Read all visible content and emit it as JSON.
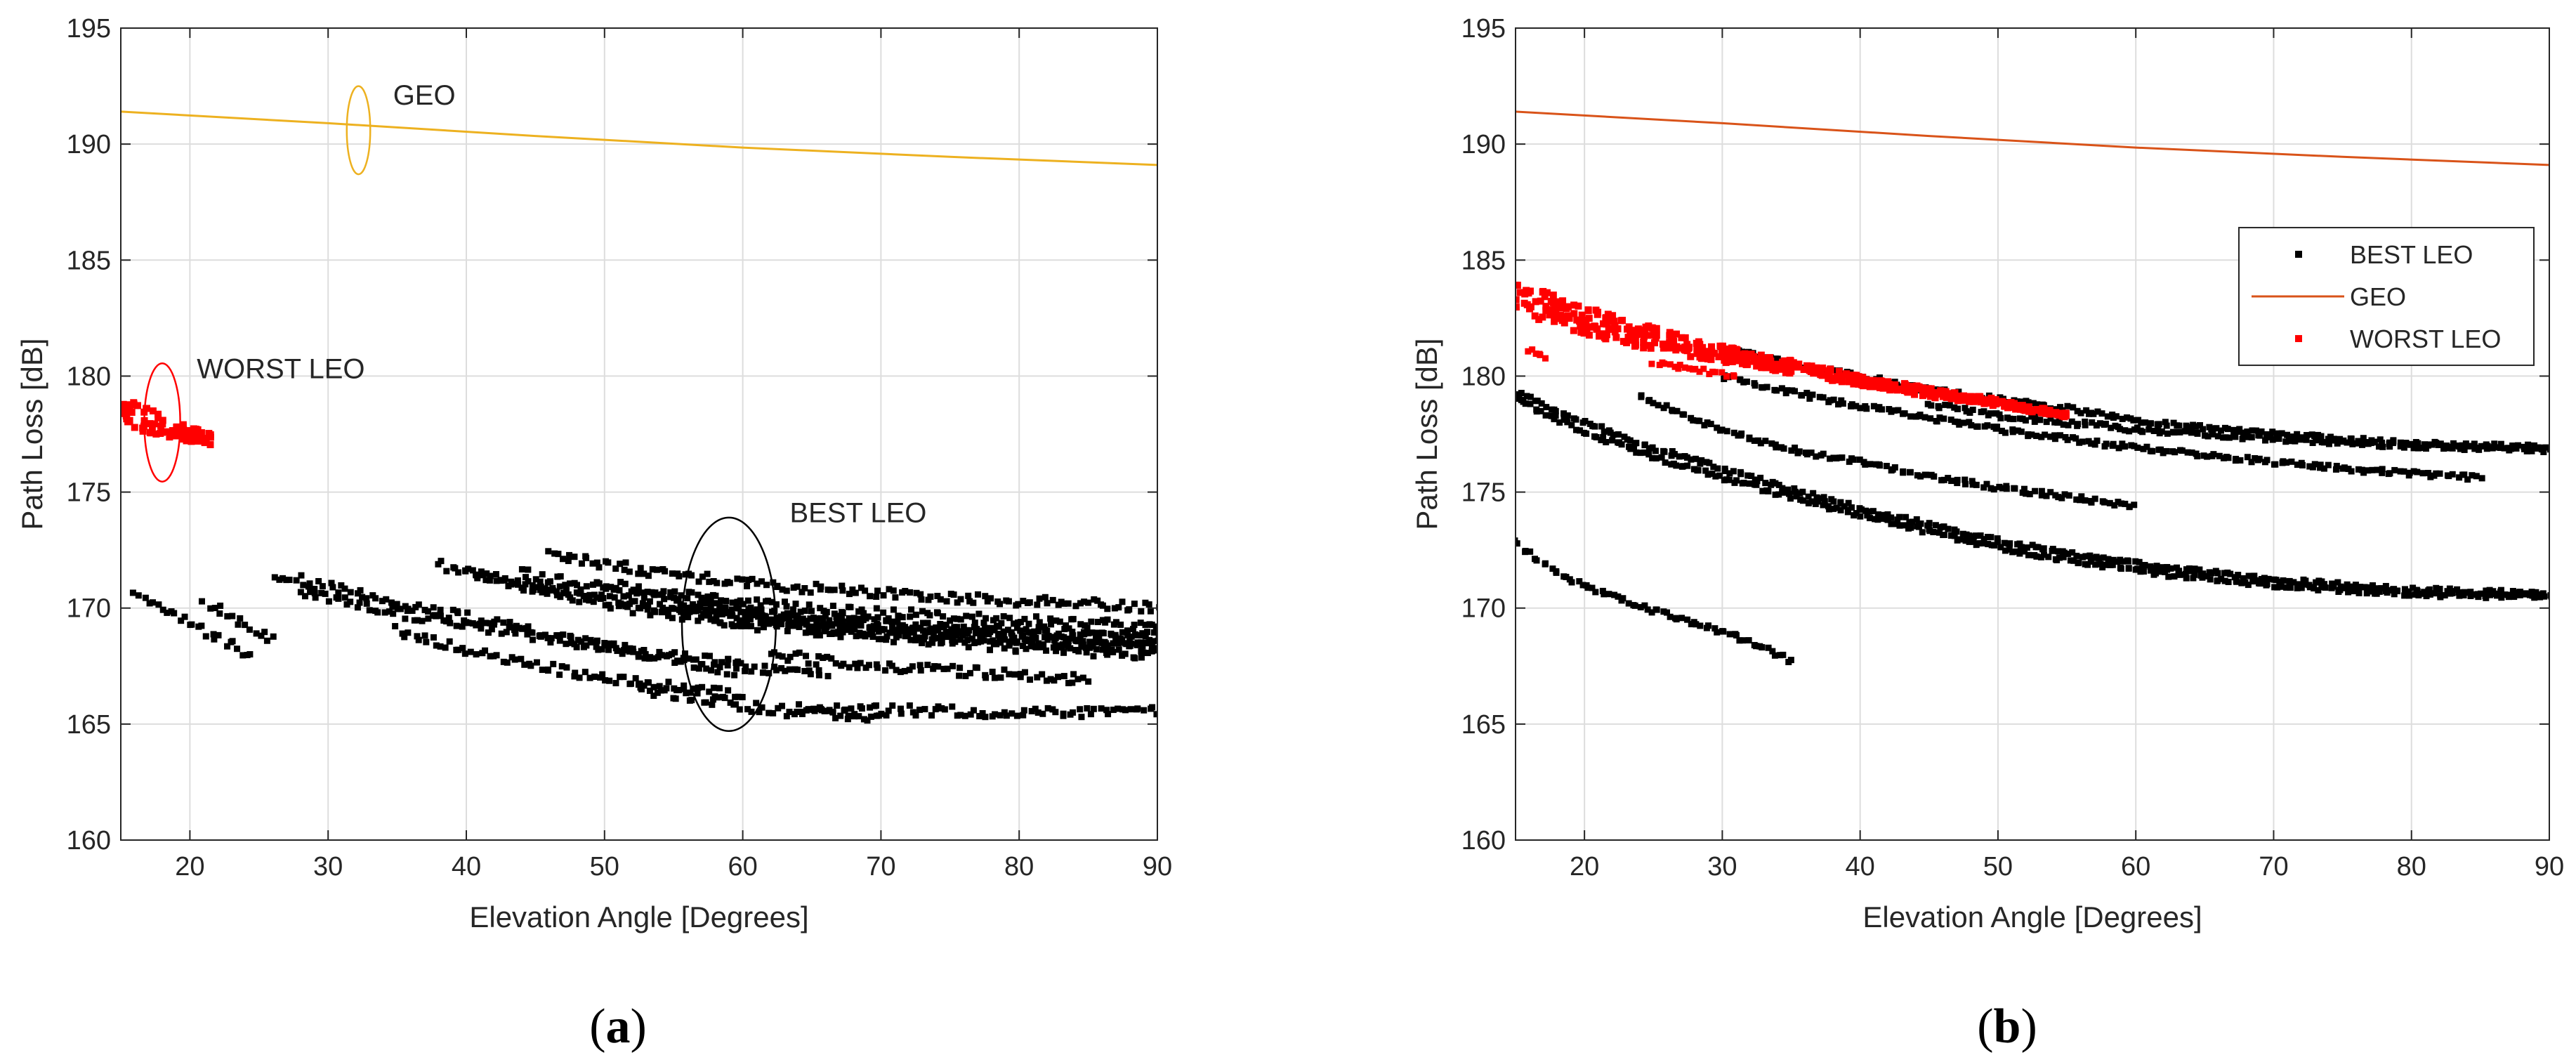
{
  "figure": {
    "panels": [
      {
        "id": "a",
        "caption_open": "(",
        "caption_letter": "a",
        "caption_close": ")"
      },
      {
        "id": "b",
        "caption_open": "(",
        "caption_letter": "b",
        "caption_close": ")"
      }
    ]
  },
  "chart_data": [
    {
      "id": "a",
      "type": "scatter",
      "title": "",
      "xlabel": "Elevation Angle [Degrees]",
      "ylabel": "Path Loss [dB]",
      "xlim": [
        15,
        90
      ],
      "ylim": [
        160,
        195
      ],
      "xticks": [
        20,
        30,
        40,
        50,
        60,
        70,
        80,
        90
      ],
      "yticks": [
        160,
        165,
        170,
        175,
        180,
        185,
        190,
        195
      ],
      "grid": true,
      "colors": {
        "geo": "#EDB120",
        "worst": "#FF0000",
        "best": "#000000",
        "grid": "#dddddd"
      },
      "series": [
        {
          "name": "GEO",
          "kind": "line",
          "color": "#EDB120",
          "x": [
            15,
            30,
            45,
            60,
            75,
            90
          ],
          "y": [
            191.4,
            190.9,
            190.35,
            189.85,
            189.45,
            189.1
          ]
        },
        {
          "name": "WORST LEO",
          "kind": "band",
          "color": "#FF0000",
          "x": [
            15,
            17,
            19,
            21.5
          ],
          "y_top": [
            179.1,
            178.6,
            178.1,
            177.5
          ],
          "y_bottom": [
            177.8,
            177.5,
            177.3,
            177.0
          ]
        },
        {
          "name": "BEST LEO",
          "kind": "scatter",
          "color": "#000000",
          "tracks": [
            {
              "x": [
                16,
                19,
                22,
                24.5
              ],
              "y": [
                170.5,
                169.7,
                168.7,
                168.0
              ]
            },
            {
              "x": [
                21,
                23.5,
                26
              ],
              "y": [
                170.4,
                169.4,
                168.7
              ]
            },
            {
              "x": [
                26,
                32,
                40,
                50,
                60
              ],
              "y": [
                171.5,
                170.6,
                169.6,
                168.3,
                167.2
              ]
            },
            {
              "x": [
                28,
                35,
                45,
                55,
                66
              ],
              "y": [
                170.6,
                169.8,
                168.8,
                167.9,
                167.1
              ]
            },
            {
              "x": [
                35,
                40,
                46,
                52,
                60
              ],
              "y": [
                169.0,
                168.2,
                167.4,
                166.8,
                166.2
              ]
            },
            {
              "x": [
                38,
                44,
                52,
                60,
                70,
                80,
                90
              ],
              "y": [
                171.9,
                171.0,
                170.0,
                169.3,
                168.8,
                168.3,
                168.0
              ]
            },
            {
              "x": [
                40,
                48,
                58,
                70,
                80,
                90
              ],
              "y": [
                171.5,
                170.6,
                169.7,
                169.0,
                168.6,
                168.3
              ]
            },
            {
              "x": [
                44,
                52,
                60,
                70,
                80,
                90
              ],
              "y": [
                171.5,
                170.6,
                169.9,
                169.3,
                168.9,
                168.6
              ]
            },
            {
              "x": [
                46,
                54,
                64,
                74,
                84,
                90
              ],
              "y": [
                172.3,
                171.5,
                170.9,
                170.5,
                170.2,
                170.0
              ]
            },
            {
              "x": [
                50,
                58,
                66,
                76,
                86,
                90
              ],
              "y": [
                171.0,
                170.4,
                169.9,
                169.6,
                169.3,
                169.2
              ]
            },
            {
              "x": [
                55,
                62,
                70,
                80,
                90
              ],
              "y": [
                170.2,
                169.7,
                169.3,
                169.0,
                168.8
              ]
            },
            {
              "x": [
                60,
                66,
                72,
                80,
                90
              ],
              "y": [
                169.6,
                169.1,
                168.9,
                168.6,
                168.4
              ]
            },
            {
              "x": [
                62,
                70,
                78,
                85
              ],
              "y": [
                168.0,
                167.5,
                167.2,
                166.9
              ]
            },
            {
              "x": [
                64,
                70,
                78,
                86,
                90
              ],
              "y": [
                165.7,
                165.6,
                165.5,
                165.5,
                165.5
              ]
            },
            {
              "x": [
                52,
                56,
                60,
                64,
                70
              ],
              "y": [
                166.6,
                166.2,
                165.8,
                165.5,
                165.3
              ]
            }
          ]
        }
      ],
      "annotations": [
        {
          "text": "GEO",
          "x": 34.7,
          "y": 191.7,
          "ellipse": {
            "cx": 32.2,
            "cy": 190.6,
            "rx": 0.85,
            "ry": 1.9
          }
        },
        {
          "text": "WORST LEO",
          "x": 20.5,
          "y": 179.9,
          "ellipse": {
            "cx": 18.0,
            "cy": 178.0,
            "rx": 1.3,
            "ry": 2.55
          }
        },
        {
          "text": "BEST LEO",
          "x": 63.4,
          "y": 173.7,
          "ellipse": {
            "cx": 59.0,
            "cy": 169.3,
            "rx": 3.4,
            "ry": 4.6
          }
        }
      ]
    },
    {
      "id": "b",
      "type": "scatter",
      "title": "",
      "xlabel": "Elevation Angle [Degrees]",
      "ylabel": "Path Loss [dB]",
      "xlim": [
        15,
        90
      ],
      "ylim": [
        160,
        195
      ],
      "xticks": [
        20,
        30,
        40,
        50,
        60,
        70,
        80,
        90
      ],
      "yticks": [
        160,
        165,
        170,
        175,
        180,
        185,
        190,
        195
      ],
      "grid": true,
      "colors": {
        "geo": "#D95319",
        "worst": "#FF0000",
        "best": "#000000",
        "grid": "#dddddd"
      },
      "legend": {
        "position": "top-right",
        "entries": [
          "BEST LEO",
          "GEO",
          "WORST LEO"
        ]
      },
      "series": [
        {
          "name": "BEST LEO",
          "kind": "scatter",
          "color": "#000000",
          "tracks": [
            {
              "x": [
                15,
                20,
                25,
                30,
                35,
                40,
                45,
                50,
                55,
                60,
                70,
                80,
                90
              ],
              "y": [
                179.3,
                178.0,
                176.9,
                176.0,
                175.1,
                174.3,
                173.6,
                172.9,
                172.4,
                171.9,
                171.2,
                170.8,
                170.6
              ]
            },
            {
              "x": [
                15,
                20,
                25,
                30,
                35,
                40,
                45,
                50,
                55,
                60,
                70,
                80,
                90
              ],
              "y": [
                179.0,
                177.6,
                176.5,
                175.6,
                174.8,
                174.0,
                173.3,
                172.6,
                172.1,
                171.6,
                171.0,
                170.6,
                170.5
              ]
            },
            {
              "x": [
                24,
                28,
                32,
                36,
                40,
                45,
                50,
                55,
                60
              ],
              "y": [
                179.2,
                178.1,
                177.3,
                176.7,
                176.3,
                175.7,
                175.2,
                174.8,
                174.4
              ]
            },
            {
              "x": [
                30,
                35,
                40,
                45,
                50,
                55,
                60,
                65,
                70,
                75,
                80,
                85
              ],
              "y": [
                180.0,
                179.3,
                178.7,
                178.2,
                177.7,
                177.3,
                176.9,
                176.6,
                176.3,
                176.0,
                175.8,
                175.6
              ]
            },
            {
              "x": [
                30,
                35,
                40,
                45,
                50,
                55,
                60,
                65,
                70,
                75,
                80,
                85,
                90
              ],
              "y": [
                181.2,
                180.5,
                180.0,
                179.4,
                179.0,
                178.6,
                178.1,
                177.8,
                177.5,
                177.3,
                177.1,
                177.0,
                176.9
              ]
            },
            {
              "x": [
                45,
                50,
                55,
                60,
                65,
                70,
                75,
                80,
                85,
                90
              ],
              "y": [
                178.8,
                178.3,
                178.0,
                177.7,
                177.5,
                177.3,
                177.1,
                177.0,
                176.9,
                176.8
              ]
            },
            {
              "x": [
                15,
                18,
                21,
                24,
                27,
                30,
                33,
                35
              ],
              "y": [
                172.8,
                171.5,
                170.7,
                170.1,
                169.5,
                169.0,
                168.3,
                167.7
              ]
            }
          ]
        },
        {
          "name": "GEO",
          "kind": "line",
          "color": "#D95319",
          "x": [
            15,
            30,
            45,
            60,
            75,
            90
          ],
          "y": [
            191.4,
            190.9,
            190.35,
            189.85,
            189.45,
            189.1
          ]
        },
        {
          "name": "WORST LEO",
          "kind": "band",
          "color": "#FF0000",
          "x": [
            15,
            20,
            25,
            30,
            35,
            40,
            45,
            50,
            55
          ],
          "y_top": [
            184.1,
            183.0,
            182.1,
            181.3,
            180.7,
            180.0,
            179.5,
            179.0,
            178.4
          ],
          "y_bottom": [
            182.7,
            181.8,
            181.1,
            180.6,
            180.1,
            179.6,
            179.1,
            178.7,
            178.2
          ]
        },
        {
          "name": "WORST LEO",
          "kind": "scatter",
          "color": "#FF0000",
          "tracks": [
            {
              "x": [
                16,
                17
              ],
              "y": [
                181.1,
                180.8
              ]
            },
            {
              "x": [
                25,
                28,
                31
              ],
              "y": [
                180.6,
                180.3,
                180.0
              ]
            }
          ]
        }
      ]
    }
  ]
}
